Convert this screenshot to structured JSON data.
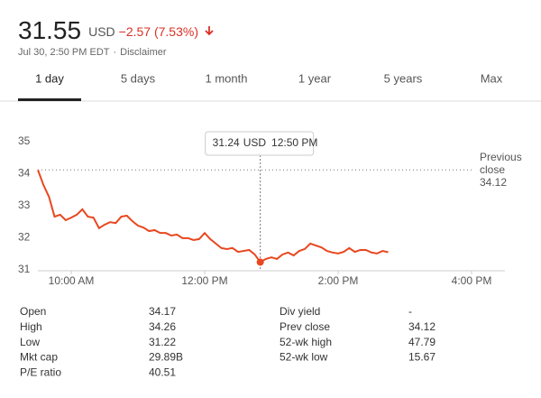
{
  "header": {
    "price": "31.55",
    "currency": "USD",
    "change": "−2.57 (7.53%)",
    "timestamp": "Jul 30, 2:50 PM EDT",
    "separator": "·",
    "disclaimer": "Disclaimer"
  },
  "tabs": [
    "1 day",
    "5 days",
    "1 month",
    "1 year",
    "5 years",
    "Max"
  ],
  "active_tab": 0,
  "chart_data": {
    "type": "line",
    "color": "#e8471f",
    "x": [
      570,
      575,
      580,
      585,
      590,
      595,
      600,
      605,
      610,
      615,
      620,
      625,
      630,
      635,
      640,
      645,
      650,
      655,
      660,
      665,
      670,
      675,
      680,
      685,
      690,
      695,
      700,
      705,
      710,
      715,
      720,
      725,
      730,
      735,
      740,
      745,
      750,
      755,
      760,
      765,
      770,
      775,
      780,
      785,
      790,
      795,
      800,
      805,
      810,
      815,
      820,
      825,
      830,
      835,
      840,
      845,
      850,
      855,
      860,
      865,
      870,
      875,
      880,
      885
    ],
    "values": [
      34.12,
      33.65,
      33.28,
      32.66,
      32.72,
      32.55,
      32.63,
      32.72,
      32.89,
      32.66,
      32.63,
      32.3,
      32.41,
      32.49,
      32.46,
      32.66,
      32.69,
      32.52,
      32.38,
      32.32,
      32.21,
      32.24,
      32.15,
      32.15,
      32.07,
      32.1,
      31.99,
      31.99,
      31.93,
      31.96,
      32.15,
      31.96,
      31.82,
      31.68,
      31.65,
      31.68,
      31.56,
      31.59,
      31.62,
      31.48,
      31.24,
      31.34,
      31.39,
      31.34,
      31.48,
      31.54,
      31.45,
      31.59,
      31.65,
      31.82,
      31.76,
      31.7,
      31.59,
      31.54,
      31.51,
      31.56,
      31.68,
      31.56,
      31.62,
      31.62,
      31.54,
      31.51,
      31.59,
      31.55
    ],
    "xlim": [
      570,
      990
    ],
    "xticks": [
      {
        "value": 600,
        "label": "10:00 AM"
      },
      {
        "value": 720,
        "label": "12:00 PM"
      },
      {
        "value": 840,
        "label": "2:00 PM"
      },
      {
        "value": 960,
        "label": "4:00 PM"
      }
    ],
    "ylim": [
      31,
      35
    ],
    "yticks": [
      31,
      32,
      33,
      34,
      35
    ],
    "grid": false,
    "previous_close": {
      "label": [
        "Previous",
        "close"
      ],
      "value": 34.12
    },
    "tooltip": {
      "x": 770,
      "value": 31.24,
      "time": "12:50 PM"
    }
  },
  "stats": {
    "left": [
      [
        "Open",
        "34.17"
      ],
      [
        "High",
        "34.26"
      ],
      [
        "Low",
        "31.22"
      ],
      [
        "Mkt cap",
        "29.89B"
      ],
      [
        "P/E ratio",
        "40.51"
      ]
    ],
    "right": [
      [
        "Div yield",
        "-"
      ],
      [
        "Prev close",
        "34.12"
      ],
      [
        "52-wk high",
        "47.79"
      ],
      [
        "52-wk low",
        "15.67"
      ]
    ]
  }
}
